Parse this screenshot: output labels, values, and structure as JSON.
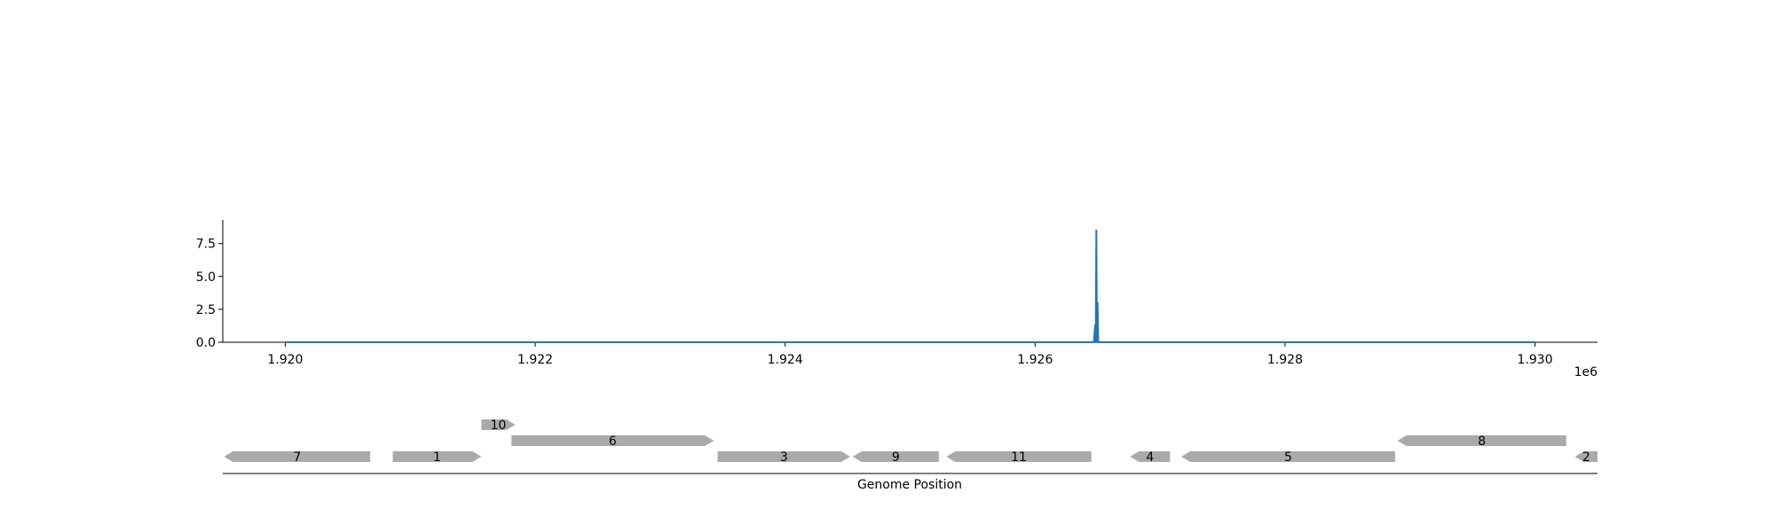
{
  "chart_data": [
    {
      "type": "line",
      "title": "",
      "xlabel": "",
      "ylabel": "",
      "xlim": [
        1919500,
        1930500
      ],
      "ylim": [
        0,
        9.3
      ],
      "x_offset_label": "1e6",
      "x_ticks": [
        1920000,
        1922000,
        1924000,
        1926000,
        1928000,
        1930000
      ],
      "x_tick_labels": [
        "1.920",
        "1.922",
        "1.924",
        "1.926",
        "1.928",
        "1.930"
      ],
      "y_ticks": [
        0,
        2.5,
        5,
        7.5
      ],
      "y_tick_labels": [
        "0.0",
        "2.5",
        "5.0",
        "7.5"
      ],
      "grid": false,
      "series": [
        {
          "color": "#1f77b4",
          "x": [
            1920000,
            1926470,
            1926480,
            1926485,
            1926490,
            1926495,
            1926500,
            1926505,
            1926510,
            1930000
          ],
          "y": [
            0,
            0,
            1.3,
            0,
            8.5,
            0,
            3.0,
            0,
            0,
            0
          ]
        }
      ]
    },
    {
      "type": "gene_track",
      "xlabel": "Genome Position",
      "color": "#aaaaaa",
      "genes": [
        {
          "label": "7",
          "start": 1919510,
          "end": 1920680,
          "strand": -1,
          "row": 0
        },
        {
          "label": "1",
          "start": 1920860,
          "end": 1921570,
          "strand": 1,
          "row": 0
        },
        {
          "label": "10",
          "start": 1921570,
          "end": 1921840,
          "strand": 1,
          "row": 2
        },
        {
          "label": "6",
          "start": 1921810,
          "end": 1923430,
          "strand": 1,
          "row": 1
        },
        {
          "label": "3",
          "start": 1923460,
          "end": 1924520,
          "strand": 1,
          "row": 0
        },
        {
          "label": "9",
          "start": 1924540,
          "end": 1925230,
          "strand": -1,
          "row": 0
        },
        {
          "label": "11",
          "start": 1925290,
          "end": 1926450,
          "strand": -1,
          "row": 0
        },
        {
          "label": "4",
          "start": 1926760,
          "end": 1927080,
          "strand": -1,
          "row": 0
        },
        {
          "label": "5",
          "start": 1927170,
          "end": 1928880,
          "strand": -1,
          "row": 0
        },
        {
          "label": "8",
          "start": 1928900,
          "end": 1930250,
          "strand": -1,
          "row": 1
        },
        {
          "label": "2",
          "start": 1930320,
          "end": 1930500,
          "strand": -1,
          "row": 0
        }
      ]
    }
  ]
}
